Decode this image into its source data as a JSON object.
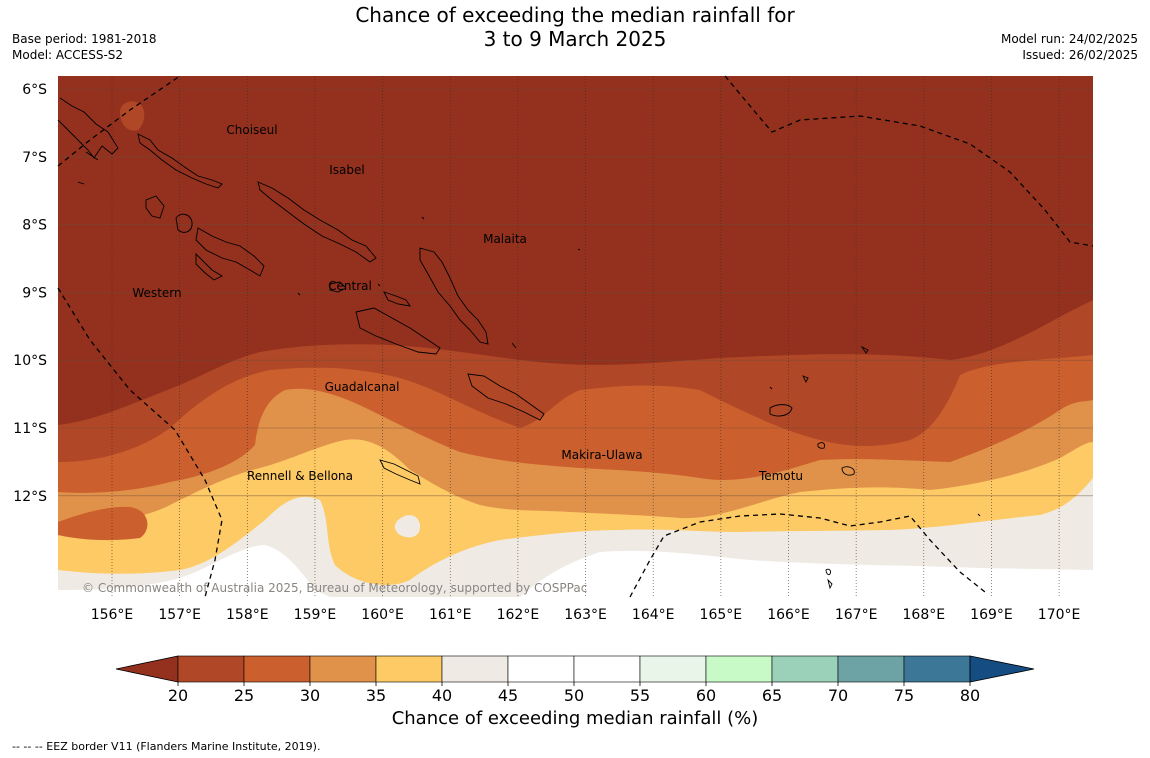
{
  "title": {
    "line1": "Chance of exceeding the median rainfall for",
    "line2": "3 to 9 March 2025"
  },
  "meta": {
    "base_period": "Base period: 1981-2018",
    "model": "Model: ACCESS-S2",
    "model_run": "Model run: 24/02/2025",
    "issued": "Issued: 26/02/2025"
  },
  "map": {
    "lat_labels": [
      "6°S",
      "7°S",
      "8°S",
      "9°S",
      "10°S",
      "11°S",
      "12°S"
    ],
    "lon_labels": [
      "156°E",
      "157°E",
      "158°E",
      "159°E",
      "160°E",
      "161°E",
      "162°E",
      "163°E",
      "164°E",
      "165°E",
      "166°E",
      "167°E",
      "168°E",
      "169°E",
      "170°E"
    ],
    "regions": [
      {
        "name": "Choiseul"
      },
      {
        "name": "Isabel"
      },
      {
        "name": "Malaita"
      },
      {
        "name": "Western"
      },
      {
        "name": "Central"
      },
      {
        "name": "Guadalcanal"
      },
      {
        "name": "Makira-Ulawa"
      },
      {
        "name": "Rennell & Bellona"
      },
      {
        "name": "Temotu"
      }
    ],
    "copyright": "© Commonwealth of Australia 2025, Bureau of Meteorology, supported by COSPPac"
  },
  "colorbar": {
    "ticks": [
      "20",
      "25",
      "30",
      "35",
      "40",
      "45",
      "50",
      "55",
      "60",
      "65",
      "70",
      "75",
      "80"
    ],
    "colors": [
      "#93311e",
      "#b04726",
      "#cb5f2e",
      "#e0924a",
      "#fdca66",
      "#efebe4",
      "#ffffff",
      "#ffffff",
      "#e9f5e9",
      "#c8fac8",
      "#9ad1b8",
      "#6ea3a6",
      "#3d7798",
      "#154d82"
    ],
    "label": "Chance of exceeding median rainfall (%)"
  },
  "footnote": "--  --  -- EEZ border V11 (Flanders Marine Institute, 2019)."
}
